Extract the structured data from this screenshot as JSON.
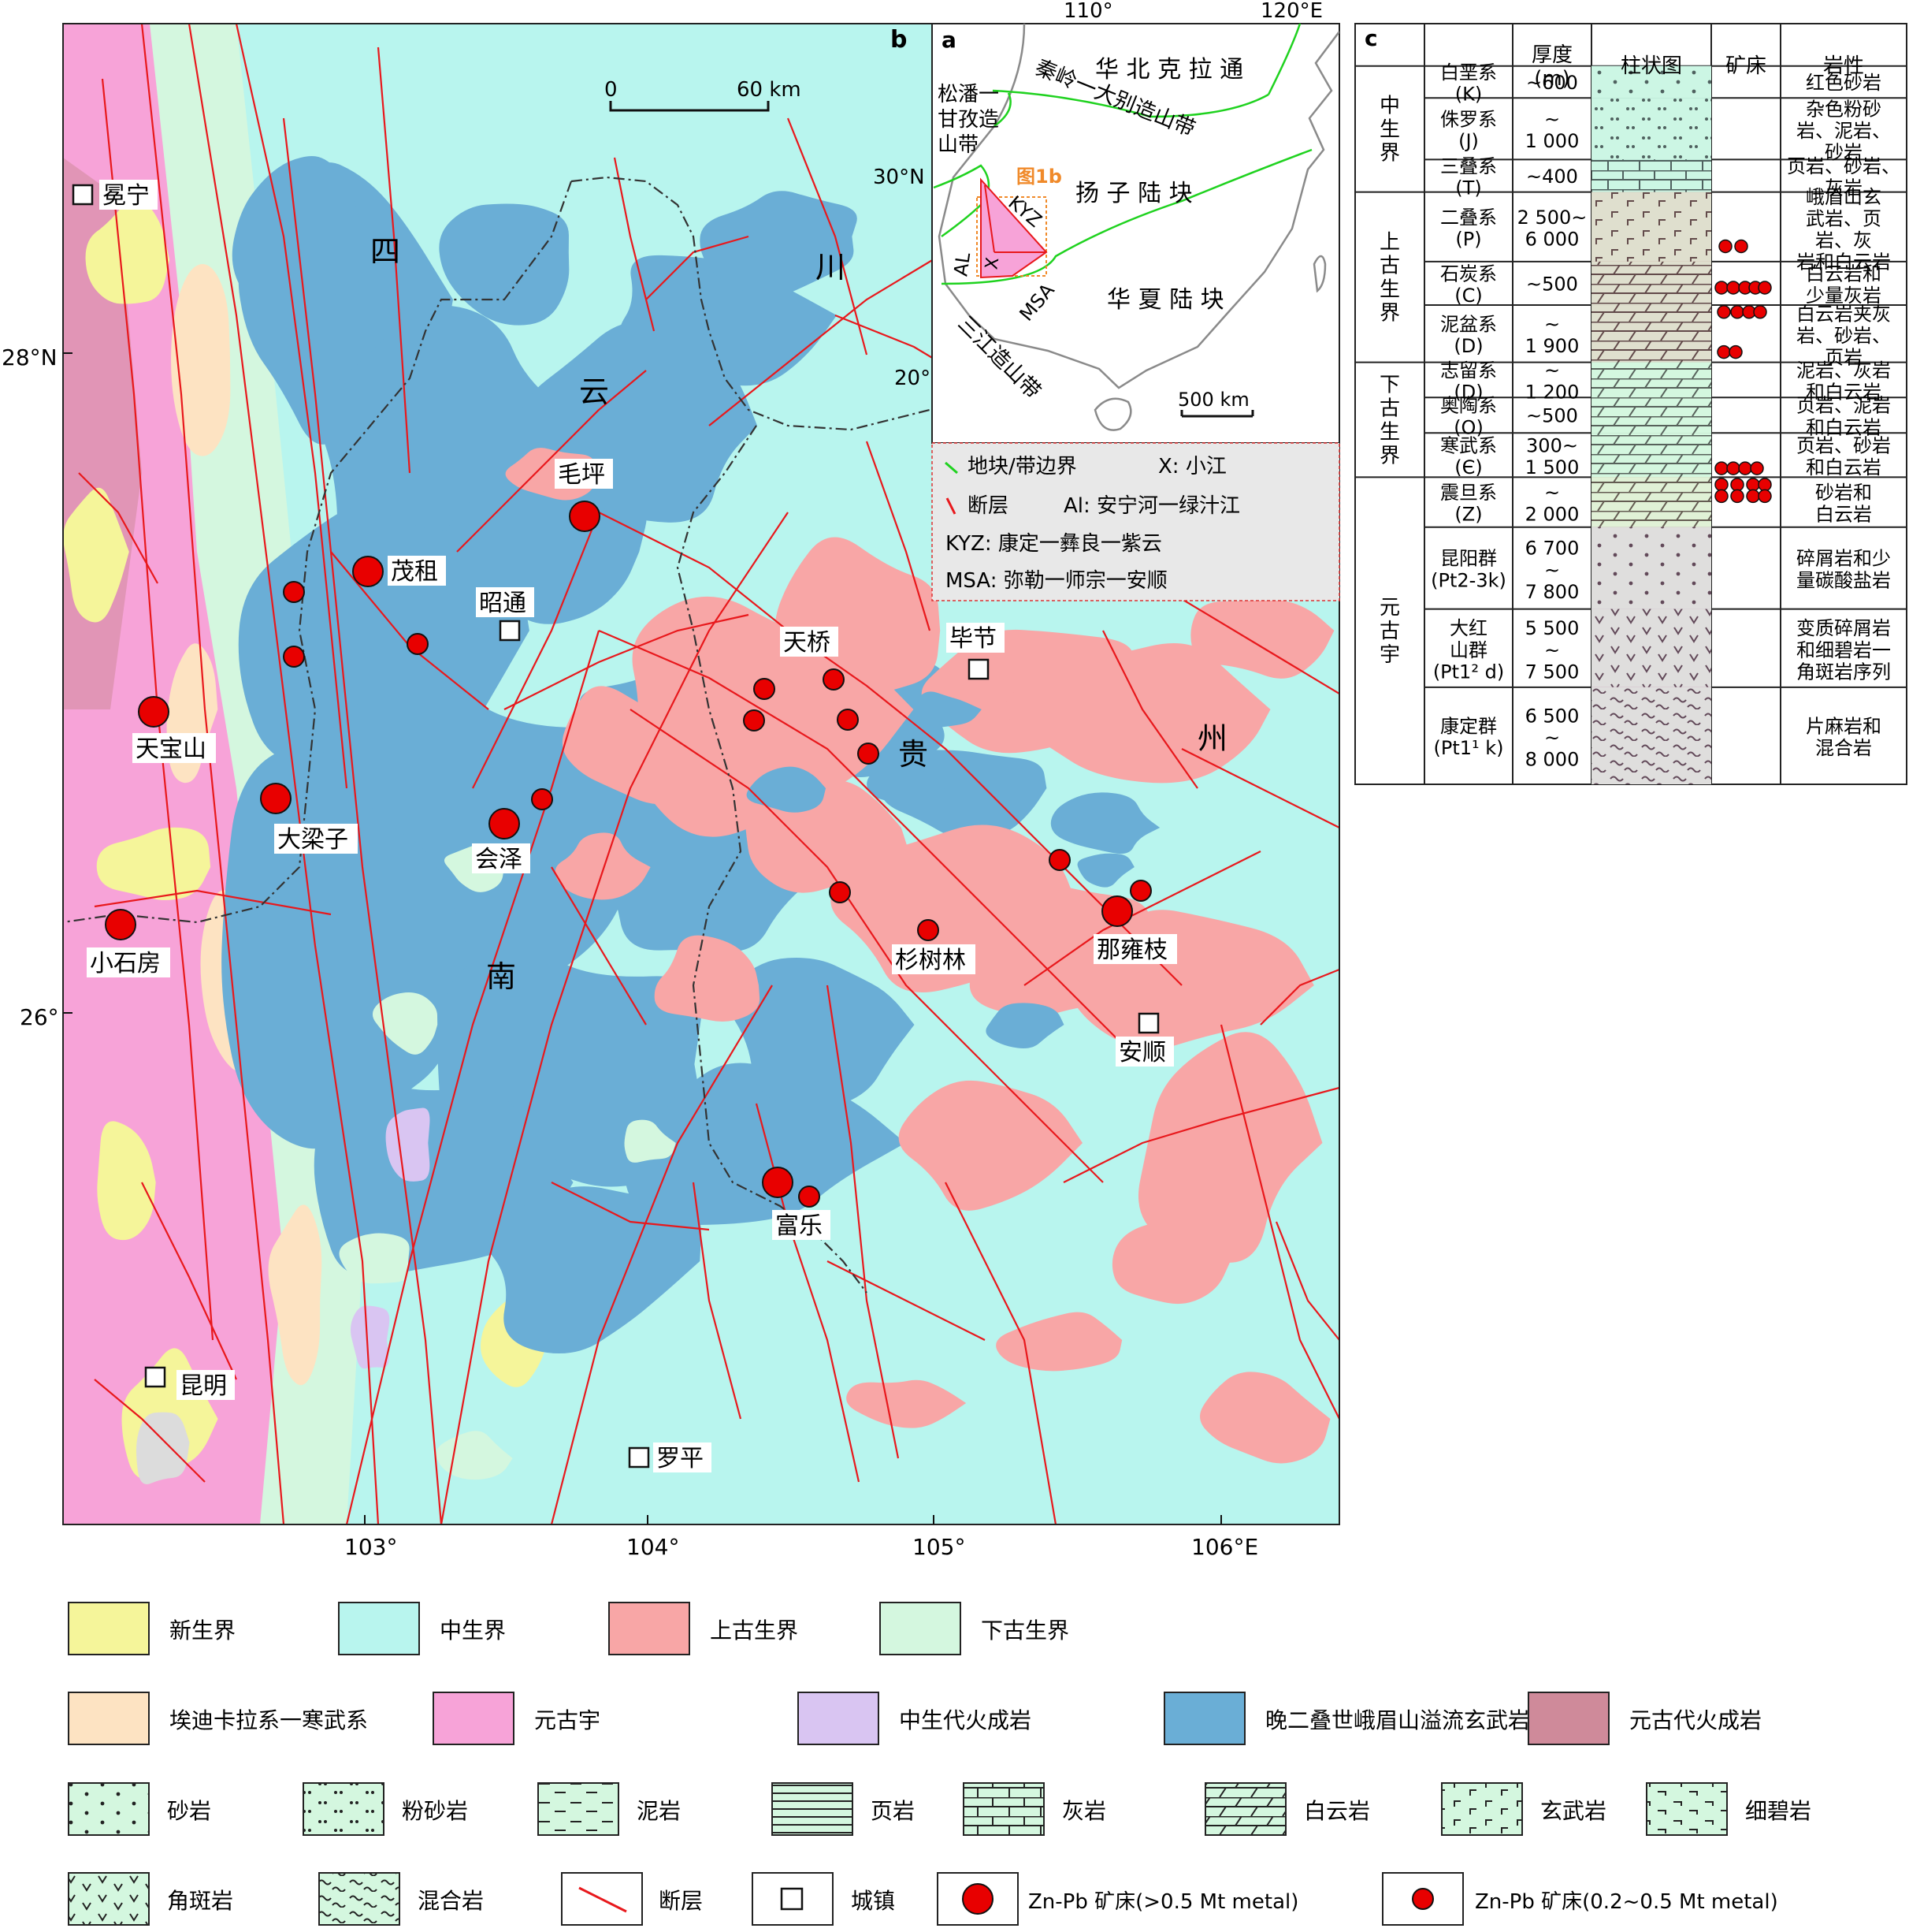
{
  "panel_labels": {
    "a": "a",
    "b": "b",
    "c": "c"
  },
  "colors": {
    "cenozoic": "#f5f59a",
    "mesozoic": "#b8f5ee",
    "upper_paleozoic": "#f8a6a6",
    "lower_paleozoic": "#d4f7df",
    "ediacaran_cambrian": "#fde3c2",
    "proterozoic": "#f7a3d8",
    "mesozoic_igneous": "#d9c5f2",
    "emeishan_basalt": "#6aaed6",
    "proterozoic_igneous": "#cf8a9a",
    "fault": "#e8181c",
    "block_boundary": "#1fd21f",
    "deposit": "#e80000",
    "inset_highlight": "#f08a2a",
    "legend_box": "#e8e8e8"
  },
  "map_b": {
    "scale_zero": "0",
    "scale_km": "60 km",
    "lat_labels": [
      "28°N",
      "26°"
    ],
    "lon_labels": [
      "103°",
      "104°",
      "105°",
      "106°E"
    ],
    "province_chars": {
      "si": "四",
      "chuan": "川",
      "yun": "云",
      "nan": "南",
      "gui": "贵",
      "zhou": "州"
    },
    "cities": [
      {
        "name": "冕宁"
      },
      {
        "name": "昭通"
      },
      {
        "name": "毕节"
      },
      {
        "name": "安顺"
      },
      {
        "name": "昆明"
      },
      {
        "name": "罗平"
      }
    ],
    "deposits_large": [
      "毛坪",
      "茂租",
      "天宝山",
      "大梁子",
      "会泽",
      "小石房",
      "那雍枝",
      "富乐"
    ],
    "deposits_labels_small": [
      "天桥",
      "杉树林"
    ]
  },
  "inset_a": {
    "lon_labels": [
      "110°",
      "120°E"
    ],
    "lat_labels": [
      "30°N",
      "20°"
    ],
    "regions": {
      "ncc": "华 北 克 拉 通",
      "qinling": "秦岭一大别造山带",
      "songpan": [
        "松潘一",
        "甘孜造",
        "山带"
      ],
      "yangtze": "扬 子 陆 块",
      "cathaysia": "华 夏 陆 块",
      "sanjiang": "三江造山带"
    },
    "fig1b": "图1b",
    "abbr": {
      "kyz": "KYZ",
      "al": "AL",
      "x": "X",
      "msa": "MSA"
    },
    "scale": "500 km",
    "legend": [
      "地块/带边界",
      "X: 小江",
      "断层",
      "Al: 安宁河一绿汁江",
      "KYZ: 康定一彝良一紫云",
      "MSA: 弥勒一师宗一安顺"
    ]
  },
  "column_c": {
    "headers": {
      "thickness": "厚度\n(m)",
      "column": "柱状图",
      "deposit": "矿床",
      "lithology": "岩性"
    },
    "eras": [
      {
        "name": "中生界"
      },
      {
        "name": "上古生界"
      },
      {
        "name": "下古生界"
      },
      {
        "name": "元古宇"
      }
    ],
    "systems": [
      {
        "name": "白垩系",
        "code": "(K)",
        "thick": [
          "~600"
        ],
        "lith": [
          "红色砂岩"
        ]
      },
      {
        "name": "侏罗系",
        "code": "(J)",
        "thick": [
          "~",
          "1 000"
        ],
        "lith": [
          "杂色粉砂",
          "岩、泥岩、",
          "砂岩"
        ]
      },
      {
        "name": "三叠系",
        "code": "(T)",
        "thick": [
          "~400"
        ],
        "lith": [
          "页岩、砂岩、",
          "灰岩"
        ]
      },
      {
        "name": "二叠系",
        "code": "(P)",
        "thick": [
          "2 500~",
          "6 000"
        ],
        "lith": [
          "峨眉山玄",
          "武岩、页",
          "岩、灰",
          "岩和白云岩"
        ]
      },
      {
        "name": "石炭系",
        "code": "(C)",
        "thick": [
          "~500"
        ],
        "lith": [
          "白云岩和",
          "少量灰岩"
        ]
      },
      {
        "name": "泥盆系",
        "code": "(D)",
        "thick": [
          "~",
          "1 900"
        ],
        "lith": [
          "白云岩夹灰",
          "岩、砂岩、",
          "页岩"
        ]
      },
      {
        "name": "志留系",
        "code": "(D)",
        "thick": [
          "~",
          "1 200"
        ],
        "lith": [
          "泥岩、灰岩",
          "和白云岩"
        ]
      },
      {
        "name": "奥陶系",
        "code": "(O)",
        "thick": [
          "~500"
        ],
        "lith": [
          "页岩、泥岩",
          "和白云岩"
        ]
      },
      {
        "name": "寒武系",
        "code": "(Є)",
        "thick": [
          "300~",
          "1 500"
        ],
        "lith": [
          "页岩、砂岩",
          "和白云岩"
        ]
      },
      {
        "name": "震旦系",
        "code": "(Z)",
        "thick": [
          "~",
          "2 000"
        ],
        "lith": [
          "砂岩和",
          "白云岩"
        ]
      },
      {
        "name": "昆阳群",
        "code": "(Pt2-3k)",
        "thick": [
          "6 700",
          "~",
          "7 800"
        ],
        "lith": [
          "碎屑岩和少",
          "量碳酸盐岩"
        ]
      },
      {
        "name": "大红",
        "code2": "山群",
        "code": "(Pt1² d)",
        "thick": [
          "5 500",
          "~",
          "7 500"
        ],
        "lith": [
          "变质碎屑岩",
          "和细碧岩一",
          "角斑岩序列"
        ]
      },
      {
        "name": "康定群",
        "code": "(Pt1¹ k)",
        "thick": [
          "6 500",
          "~",
          "8 000"
        ],
        "lith": [
          "片麻岩和",
          "混合岩"
        ]
      }
    ]
  },
  "legend": {
    "units": [
      {
        "key": "cenozoic",
        "label": "新生界"
      },
      {
        "key": "mesozoic",
        "label": "中生界"
      },
      {
        "key": "upper_paleozoic",
        "label": "上古生界"
      },
      {
        "key": "lower_paleozoic",
        "label": "下古生界"
      },
      {
        "key": "ediacaran_cambrian",
        "label": "埃迪卡拉系一寒武系"
      },
      {
        "key": "proterozoic",
        "label": "元古宇"
      },
      {
        "key": "mesozoic_igneous",
        "label": "中生代火成岩"
      },
      {
        "key": "emeishan_basalt",
        "label": "晚二叠世峨眉山溢流玄武岩"
      },
      {
        "key": "proterozoic_igneous",
        "label": "元古代火成岩"
      }
    ],
    "lithologies": [
      "砂岩",
      "粉砂岩",
      "泥岩",
      "页岩",
      "灰岩",
      "白云岩",
      "玄武岩",
      "细碧岩",
      "角斑岩",
      "混合岩"
    ],
    "symbols": [
      "断层",
      "城镇",
      "Zn-Pb 矿床(>0.5 Mt metal)",
      "Zn-Pb 矿床(0.2~0.5 Mt metal)"
    ]
  }
}
